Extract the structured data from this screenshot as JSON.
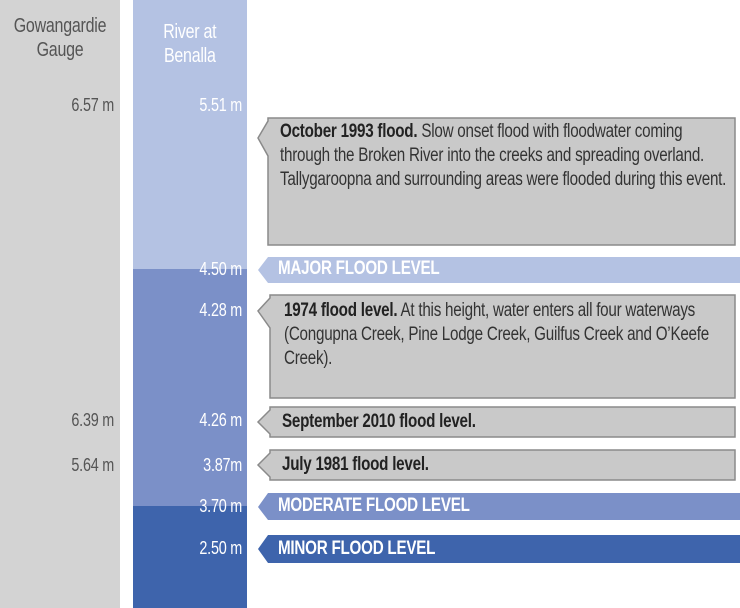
{
  "columns": {
    "gauge": "Gowangardie Gauge",
    "benalla": "River at Benalla"
  },
  "events": [
    {
      "gauge": "6.57 m",
      "benalla": "5.51 m",
      "title": "October 1993 flood.",
      "text": "Slow onset flood with floodwater coming through the Broken River into the creeks and spreading overland. Tallygaroopna and surrounding areas were flooded during this event."
    },
    {
      "benalla": "4.50 m",
      "level": "MAJOR FLOOD LEVEL"
    },
    {
      "benalla": "4.28 m",
      "title": "1974 flood level.",
      "text": "At this height, water enters all four waterways (Congupna Creek, Pine Lodge Creek, Guilfus Creek and O’Keefe Creek)."
    },
    {
      "gauge": "6.39 m",
      "benalla": "4.26 m",
      "title": "September 2010 flood level."
    },
    {
      "gauge": "5.64 m",
      "benalla": "3.87m",
      "title": "July 1981 flood level."
    },
    {
      "benalla": "3.70 m",
      "level": "MODERATE FLOOD LEVEL"
    },
    {
      "benalla": "2.50 m",
      "level": "MINOR FLOOD LEVEL"
    }
  ]
}
